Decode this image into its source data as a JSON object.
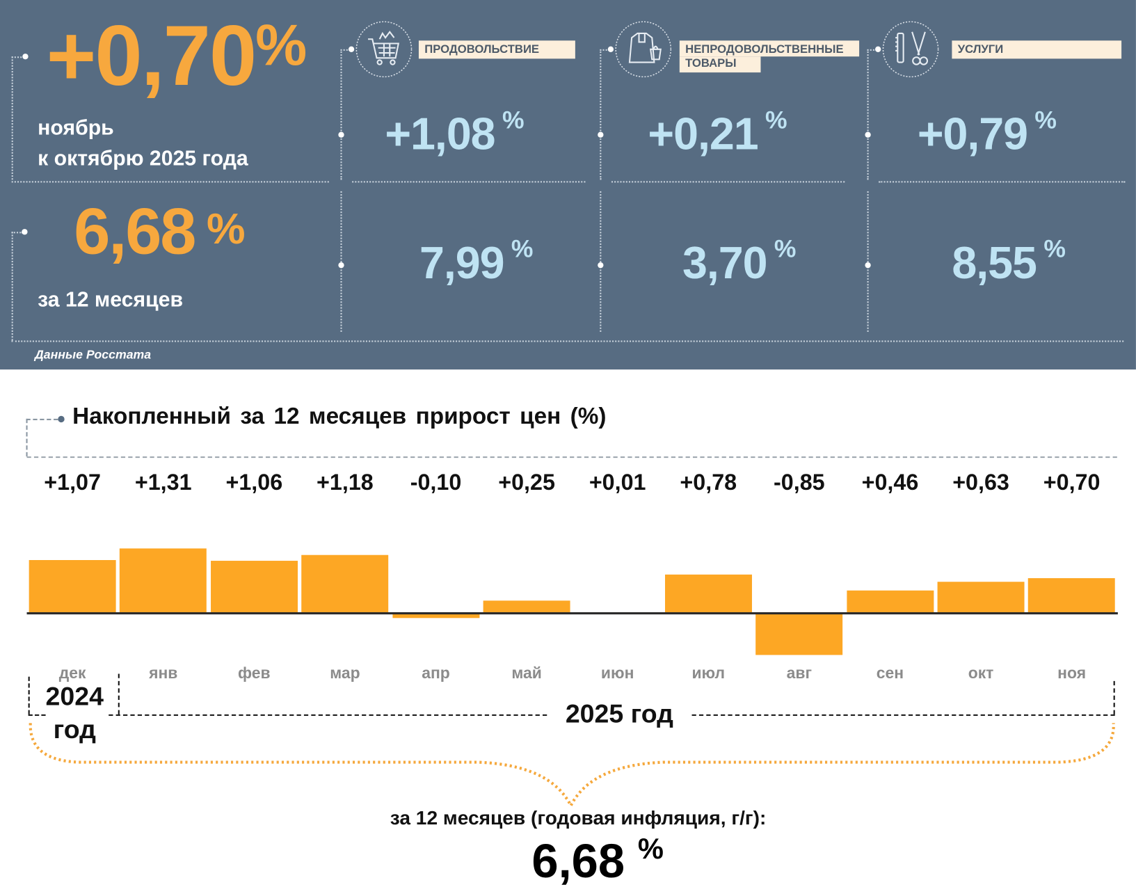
{
  "summary": {
    "monthly_value": "+0,70",
    "monthly_caption_1": "ноябрь",
    "monthly_caption_2": "к октябрю 2025 года",
    "annual_value": "6,68",
    "annual_caption": "за 12 месяцев",
    "percent": "%",
    "source": "Данные Росстата"
  },
  "categories": [
    {
      "label": "ПРОДОВОЛЬСТВИЕ",
      "icon": "shopping-cart-icon",
      "monthly": "+1,08",
      "annual": "7,99"
    },
    {
      "label": "НЕПРОДОВОЛЬСТВЕННЫЕ ТОВАРЫ",
      "label_1": "НЕПРОДОВОЛЬСТВЕННЫЕ",
      "label_2": "ТОВАРЫ",
      "icon": "clothing-icon",
      "monthly": "+0,21",
      "annual": "3,70"
    },
    {
      "label": "УСЛУГИ",
      "icon": "scissors-comb-icon",
      "monthly": "+0,79",
      "annual": "8,55"
    }
  ],
  "colors": {
    "panel": "#576c82",
    "orange": "#f7a83e",
    "blue": "#bfe3f3",
    "bar": "#fda724"
  },
  "chart_data": {
    "type": "bar",
    "title": "Накопленный за 12 месяцев прирост цен (%)",
    "categories": [
      "дек",
      "янв",
      "фев",
      "мар",
      "апр",
      "май",
      "июн",
      "июл",
      "авг",
      "сен",
      "окт",
      "ноя"
    ],
    "values": [
      1.07,
      1.31,
      1.06,
      1.18,
      -0.1,
      0.25,
      0.01,
      0.78,
      -0.85,
      0.46,
      0.63,
      0.7
    ],
    "value_labels": [
      "+1,07",
      "+1,31",
      "+1,06",
      "+1,18",
      "-0,10",
      "+0,25",
      "+0,01",
      "+0,78",
      "-0,85",
      "+0,46",
      "+0,63",
      "+0,70"
    ],
    "year_2024": "2024",
    "year_2024_suffix": "год",
    "year_2025": "2025 год",
    "total_caption": "за 12 месяцев (годовая инфляция, г/г):",
    "total_value": "6,68",
    "total_unit": "%"
  }
}
